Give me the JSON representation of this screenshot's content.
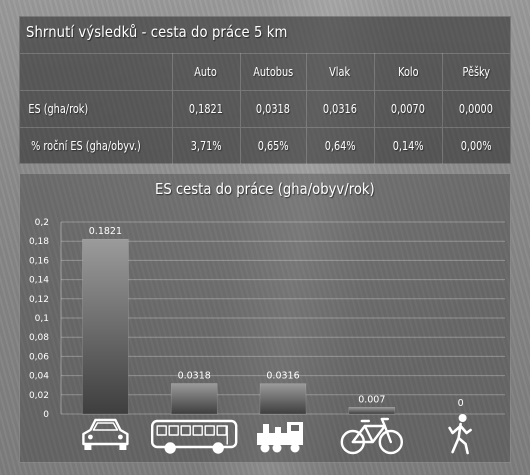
{
  "summary": {
    "title": "Shrnutí výsledků - cesta do práce 5 km",
    "columns": [
      "",
      "Auto",
      "Autobus",
      "Vlak",
      "Kolo",
      "Pěšky"
    ],
    "rows": [
      {
        "label": "ES (gha/rok)",
        "values": [
          "0,1821",
          "0,0318",
          "0,0316",
          "0,0070",
          "0,0000"
        ]
      },
      {
        "label": "% roční ES (gha/obyv.)",
        "values": [
          "3,71%",
          "0,65%",
          "0,64%",
          "0,14%",
          "0,00%"
        ]
      }
    ]
  },
  "chart_data": {
    "type": "bar",
    "title": "ES cesta do práce (gha/obyv/rok)",
    "categories": [
      "Auto",
      "Autobus",
      "Vlak",
      "Kolo",
      "Pěšky"
    ],
    "values": [
      0.1821,
      0.0318,
      0.0316,
      0.007,
      0
    ],
    "data_labels": [
      "0.1821",
      "0.0318",
      "0.0316",
      "0.007",
      "0"
    ],
    "ylim": [
      0,
      0.2
    ],
    "yticks": [
      0,
      0.02,
      0.04,
      0.06,
      0.08,
      0.1,
      0.12,
      0.14,
      0.16,
      0.18,
      0.2
    ],
    "ytick_labels": [
      "0",
      "0,02",
      "0,04",
      "0,06",
      "0,08",
      "0,1",
      "0,12",
      "0,14",
      "0,16",
      "0,18",
      "0,2"
    ],
    "grid": true,
    "category_icons": [
      "car-icon",
      "bus-icon",
      "train-icon",
      "bicycle-icon",
      "pedestrian-icon"
    ]
  }
}
